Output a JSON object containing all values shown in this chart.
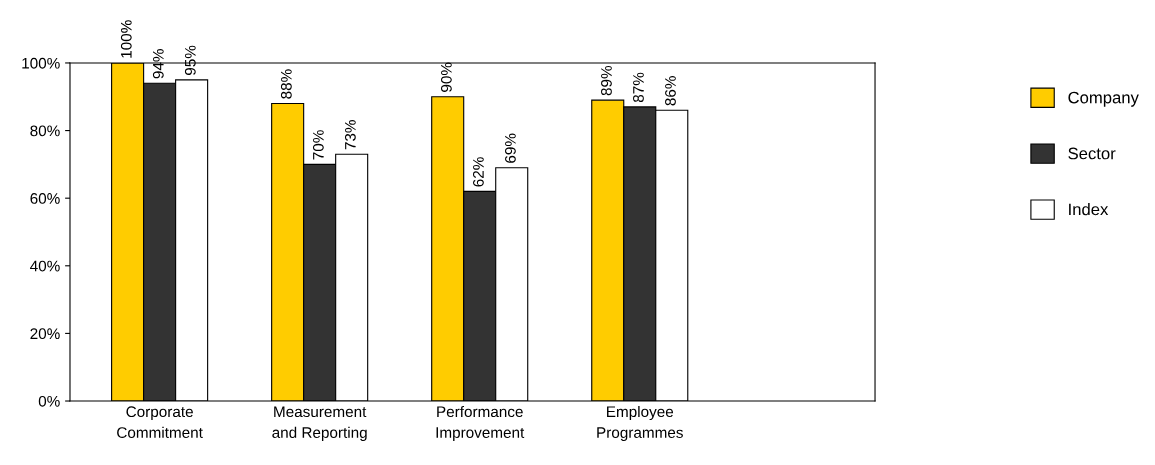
{
  "chart_data": {
    "type": "bar",
    "categories": [
      "Corporate\nCommitment",
      "Measurement\nand Reporting",
      "Performance\nImprovement",
      "Employee\nProgrammes"
    ],
    "series": [
      {
        "name": "Company",
        "color": "#ffcc00",
        "values": [
          100,
          88,
          90,
          89
        ],
        "value_labels": [
          "100%",
          "88%",
          "90%",
          "89%"
        ]
      },
      {
        "name": "Sector",
        "color": "#333333",
        "values": [
          94,
          70,
          62,
          87
        ],
        "value_labels": [
          "94%",
          "70%",
          "62%",
          "87%"
        ]
      },
      {
        "name": "Index",
        "color": "#ffffff",
        "values": [
          95,
          73,
          69,
          86
        ],
        "value_labels": [
          "95%",
          "73%",
          "69%",
          "86%"
        ]
      }
    ],
    "ylim": [
      0,
      100
    ],
    "yticks": [
      {
        "value": 0,
        "label": "0%"
      },
      {
        "value": 20,
        "label": "20%"
      },
      {
        "value": 40,
        "label": "40%"
      },
      {
        "value": 60,
        "label": "60%"
      },
      {
        "value": 80,
        "label": "80%"
      },
      {
        "value": 100,
        "label": "100%"
      }
    ],
    "grid": false,
    "legend": "right"
  }
}
